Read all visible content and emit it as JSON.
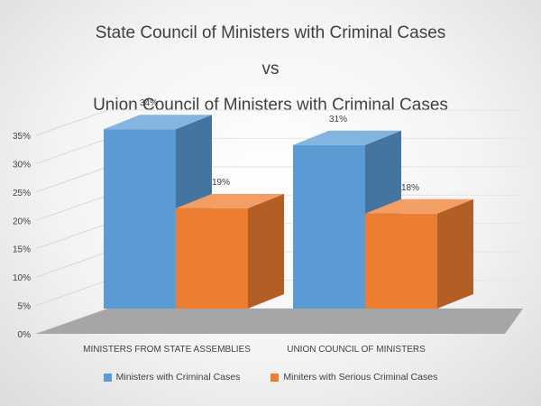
{
  "chart_data": {
    "type": "bar",
    "title": "State Council of Ministers with Criminal Cases",
    "title_line2": "vs",
    "title_line3": "Union Council of Ministers with Criminal Cases",
    "categories": [
      "MINISTERS FROM STATE ASSEMBLIES",
      "UNION COUNCIL OF MINISTERS"
    ],
    "series": [
      {
        "name": "Ministers with Criminal Cases",
        "values": [
          34,
          31
        ],
        "labels": [
          "34%",
          "31%"
        ],
        "color": "#5b9bd5"
      },
      {
        "name": "Miniters with Serious Criminal Cases",
        "values": [
          19,
          18
        ],
        "labels": [
          "19%",
          "18%"
        ],
        "color": "#ed7d31"
      }
    ],
    "ylim": [
      0,
      35
    ],
    "yticks": [
      "0%",
      "5%",
      "10%",
      "15%",
      "20%",
      "25%",
      "30%",
      "35%"
    ],
    "xlabel": "",
    "ylabel": "",
    "grid": true,
    "legend": "bottom",
    "style": "3d-clustered-column"
  }
}
